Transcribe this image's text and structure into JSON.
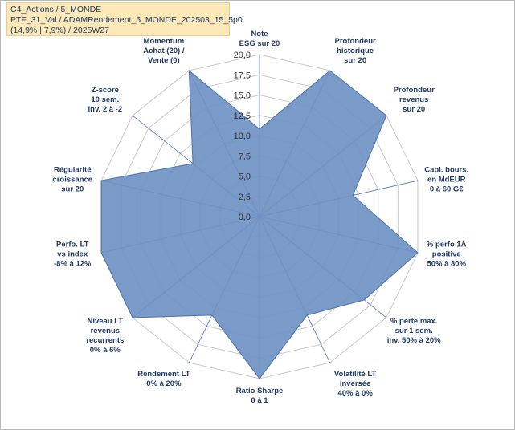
{
  "info_box": {
    "line1": "C4_Actions / 5_MONDE",
    "line2": "PTF_31_Val / ADAMRendement_5_MONDE_202503_15_5p0",
    "line3": "(14,9% | 7,9%) / 2025W27"
  },
  "chart_data": {
    "type": "radar",
    "title": "",
    "rlim": [
      0,
      20
    ],
    "rticks": [
      "0,0",
      "2,5",
      "5,0",
      "7,5",
      "10,0",
      "12,5",
      "15,0",
      "17,5",
      "20,0"
    ],
    "grid": true,
    "colors": {
      "fill": "#6f91c2",
      "stroke": "#4a72b0",
      "grid": "#c8c8c8",
      "spoke": "#4472c4"
    },
    "axes": [
      {
        "label": [
          "Note",
          "ESG sur 20"
        ],
        "value": 10.8
      },
      {
        "label": [
          "Profondeur",
          "historique",
          "sur 20"
        ],
        "value": 20
      },
      {
        "label": [
          "Profondeur",
          "revenus",
          "sur 20"
        ],
        "value": 20
      },
      {
        "label": [
          "Capi. bours.",
          "en MdEUR",
          "0 à 60 G€"
        ],
        "value": 11.8
      },
      {
        "label": [
          "% perfo 1A",
          "positive",
          "50% à 80%"
        ],
        "value": 20
      },
      {
        "label": [
          "% perte max.",
          "sur 1 sem.",
          "inv. 50% à 20%"
        ],
        "value": 16.5
      },
      {
        "label": [
          "Volatilité LT",
          "inversée",
          "40% à 0%"
        ],
        "value": 13.5
      },
      {
        "label": [
          "Ratio Sharpe",
          "0 à 1"
        ],
        "value": 20
      },
      {
        "label": [
          "Rendement LT",
          "0% à 20%"
        ],
        "value": 13.5
      },
      {
        "label": [
          "Niveau LT",
          "revenus",
          "recurrents",
          "0% à 6%"
        ],
        "value": 20
      },
      {
        "label": [
          "Perfo. LT",
          "vs index",
          "-8% à 12%"
        ],
        "value": 20
      },
      {
        "label": [
          "Régularité",
          "croissance",
          "sur 20"
        ],
        "value": 20
      },
      {
        "label": [
          "Z-score",
          "10 sem.",
          "inv. 2 à -2"
        ],
        "value": 10.5
      },
      {
        "label": [
          "Momentum",
          "Achat (20) /",
          "Vente (0)"
        ],
        "value": 20
      }
    ]
  }
}
